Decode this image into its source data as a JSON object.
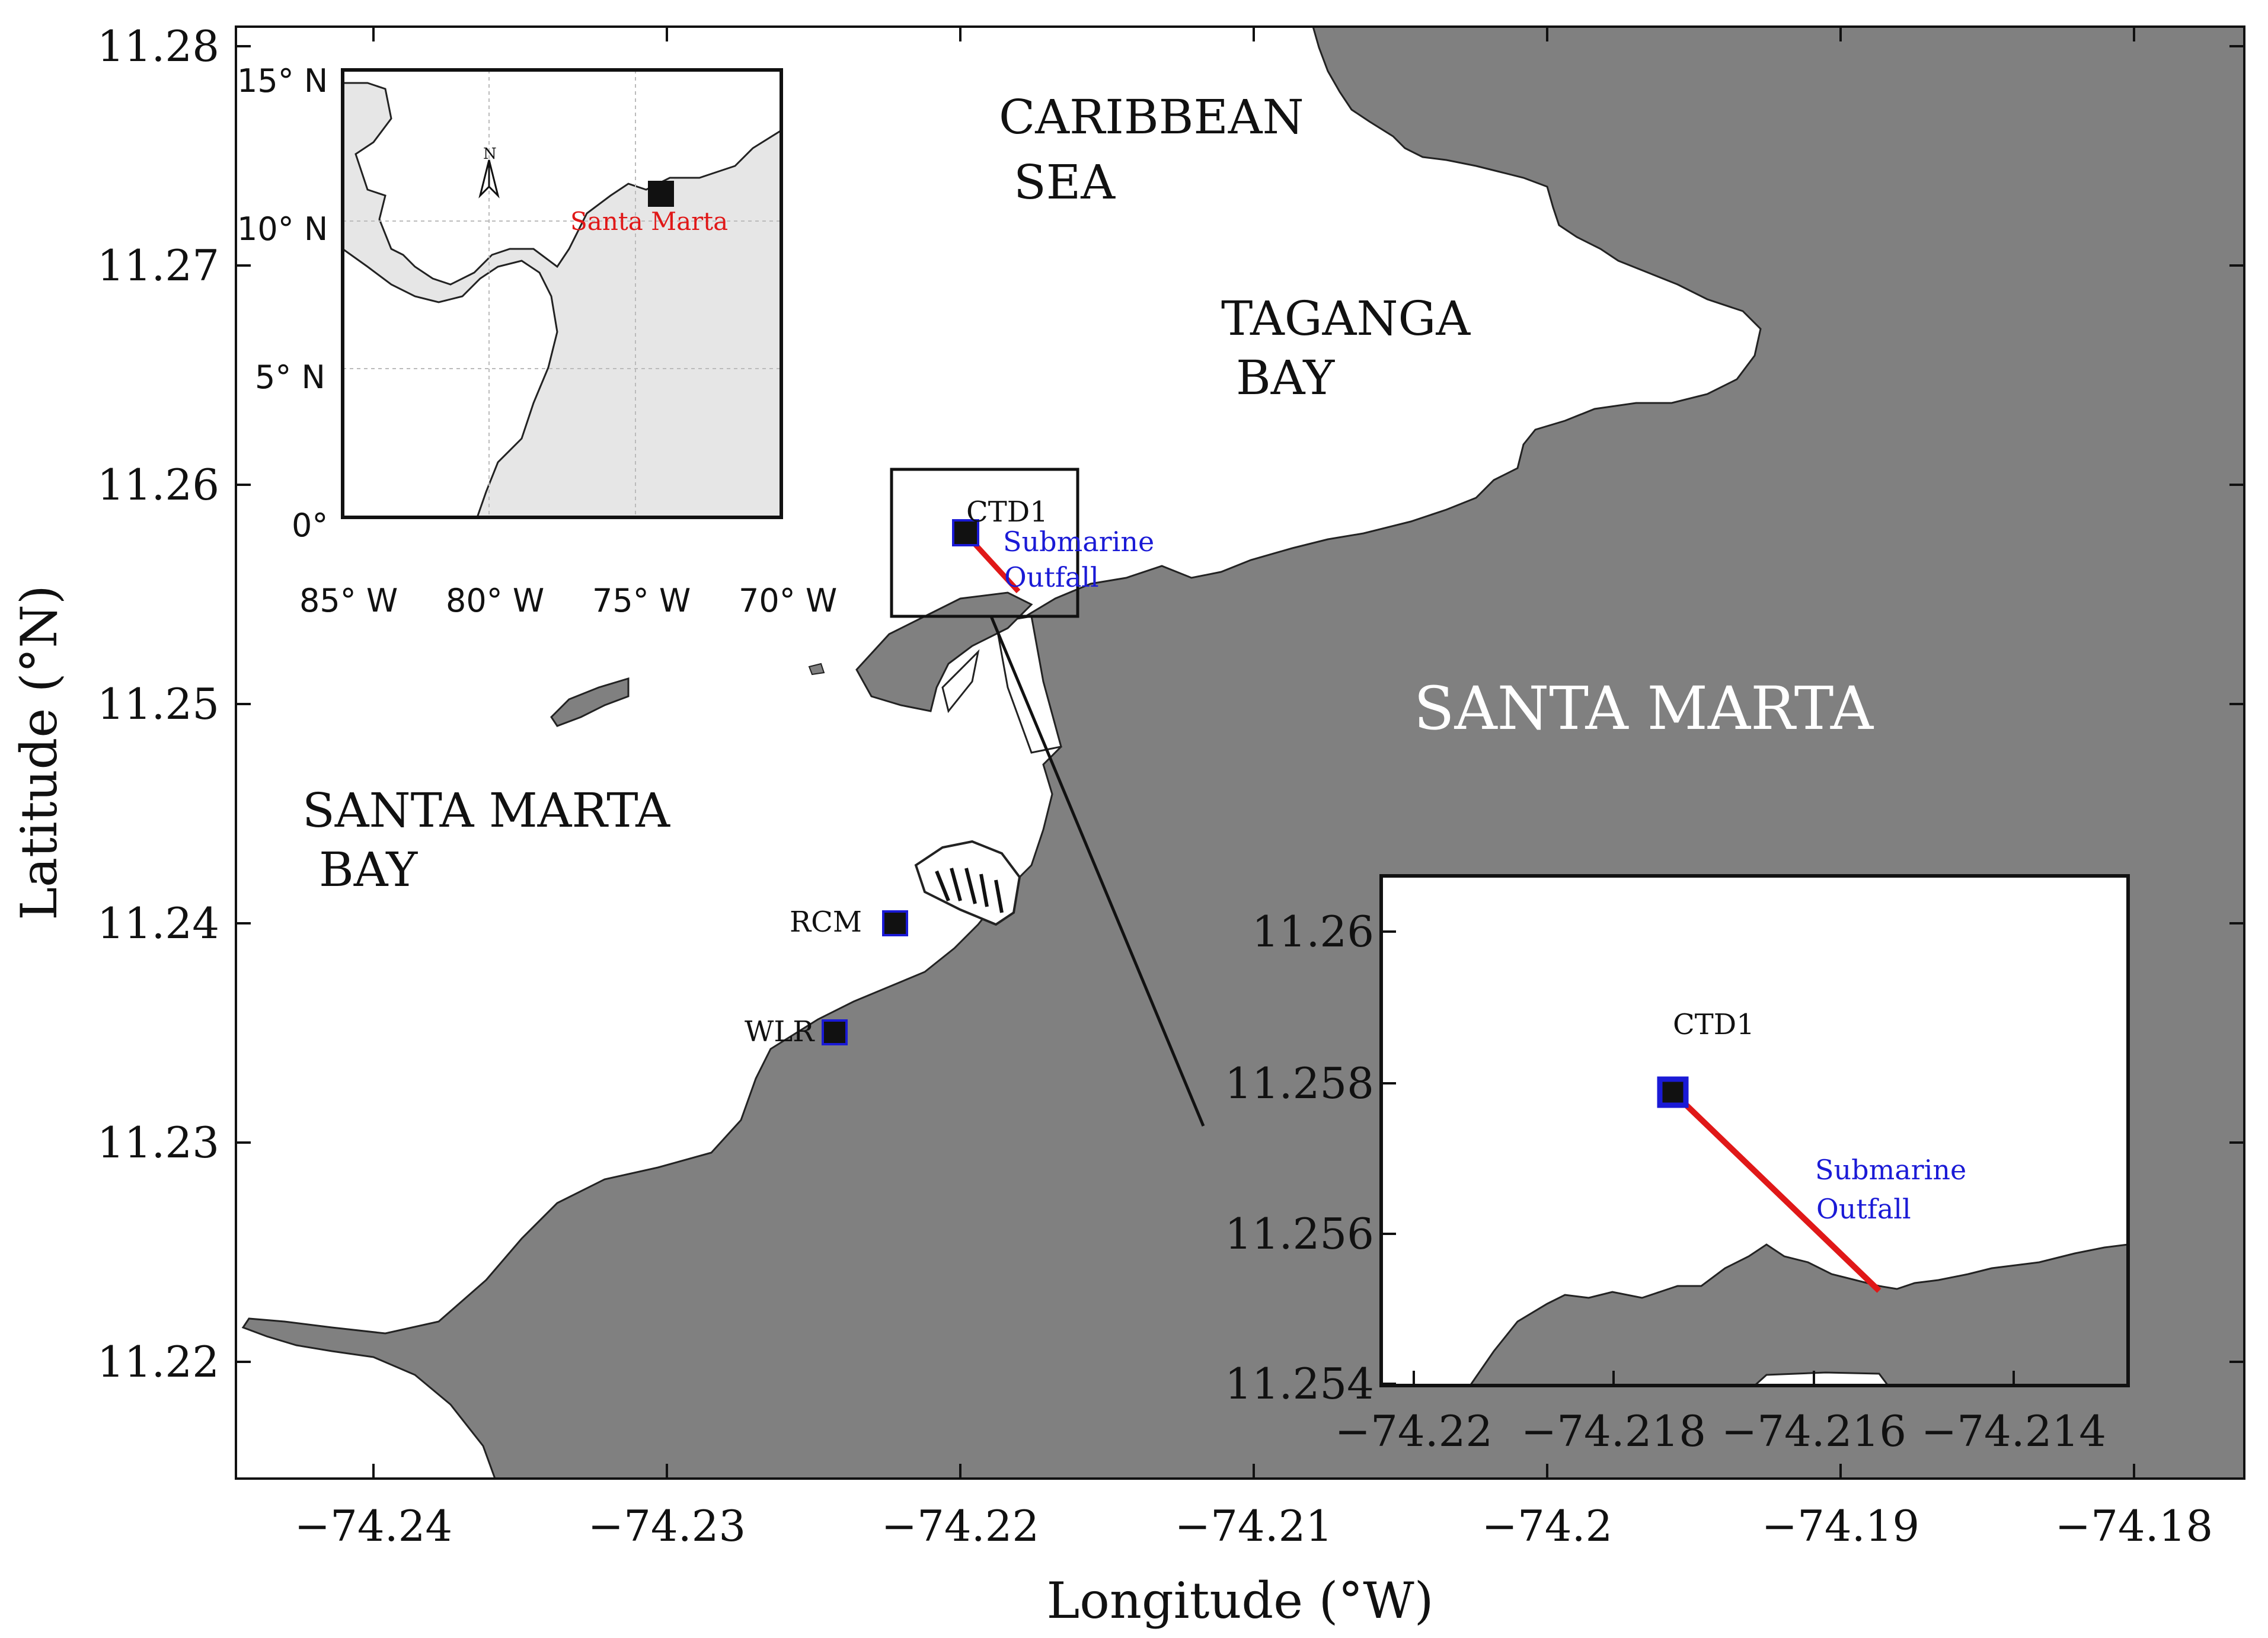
{
  "map": {
    "x_label": "Longitude (°W)",
    "y_label": "Latitude (°N)",
    "x_ticks": [
      "−74.24",
      "−74.23",
      "−74.22",
      "−74.21",
      "−74.2",
      "−74.19",
      "−74.18"
    ],
    "y_ticks": [
      "11.28",
      "11.27",
      "11.26",
      "11.25",
      "11.24",
      "11.23",
      "11.22"
    ],
    "colors": {
      "land": "#808080",
      "water": "#ffffff",
      "outfall": "#e01818",
      "station_edge": "#1a1ad6",
      "label_blue": "#1a1ad6",
      "label_red": "#e01818"
    }
  },
  "labels": {
    "caribbean_1": "CARIBBEAN",
    "caribbean_2": "SEA",
    "taganga_1": "TAGANGA",
    "taganga_2": "BAY",
    "santa_marta_city": "SANTA MARTA",
    "santa_marta_bay_1": "SANTA MARTA",
    "santa_marta_bay_2": "BAY",
    "ctd1": "CTD1",
    "outfall_1": "Submarine",
    "outfall_2": "Outfall",
    "rcm": "RCM",
    "wlr": "WLR"
  },
  "overview_inset": {
    "x_ticks": [
      "85° W",
      "80° W",
      "75° W",
      "70° W"
    ],
    "y_ticks": [
      "15° N",
      "10° N",
      "5° N",
      "0°"
    ],
    "city_label": "Santa Marta",
    "north_icon": "north-arrow-icon"
  },
  "zoom_inset": {
    "x_ticks": [
      "−74.22",
      "−74.218",
      "−74.216",
      "−74.214"
    ],
    "y_ticks": [
      "11.26",
      "11.258",
      "11.256",
      "11.254"
    ],
    "ctd1": "CTD1",
    "outfall_1": "Submarine",
    "outfall_2": "Outfall"
  }
}
